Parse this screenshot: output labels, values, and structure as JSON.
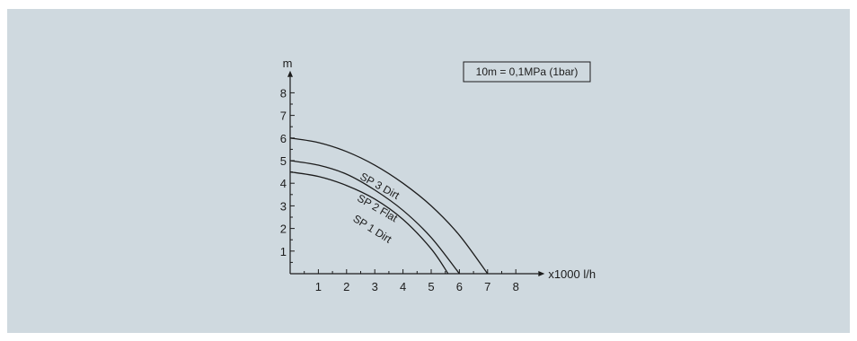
{
  "chart_data": {
    "type": "line",
    "ylabel": "m",
    "xlabel": "x1000 l/h",
    "xlim": [
      0,
      8
    ],
    "ylim": [
      0,
      8
    ],
    "x_ticks": [
      "1",
      "2",
      "3",
      "4",
      "5",
      "6",
      "7",
      "8"
    ],
    "y_ticks": [
      "1",
      "2",
      "3",
      "4",
      "5",
      "6",
      "7",
      "8"
    ],
    "grid": false,
    "annotation": "10m = 0,1MPa (1bar)",
    "series": [
      {
        "name": "SP 1 Dirt",
        "x": [
          0,
          1,
          2,
          3,
          4,
          5,
          5.6
        ],
        "y": [
          4.5,
          4.3,
          3.9,
          3.3,
          2.4,
          1.1,
          0
        ]
      },
      {
        "name": "SP 2 Flat",
        "x": [
          0,
          1,
          2,
          3,
          4,
          5,
          6
        ],
        "y": [
          5.0,
          4.8,
          4.4,
          3.7,
          2.8,
          1.6,
          0
        ]
      },
      {
        "name": "SP 3 Dirt",
        "x": [
          0,
          1,
          2,
          3,
          4,
          5,
          6,
          7
        ],
        "y": [
          6.0,
          5.8,
          5.4,
          4.8,
          4.0,
          3.0,
          1.7,
          0
        ]
      }
    ]
  }
}
